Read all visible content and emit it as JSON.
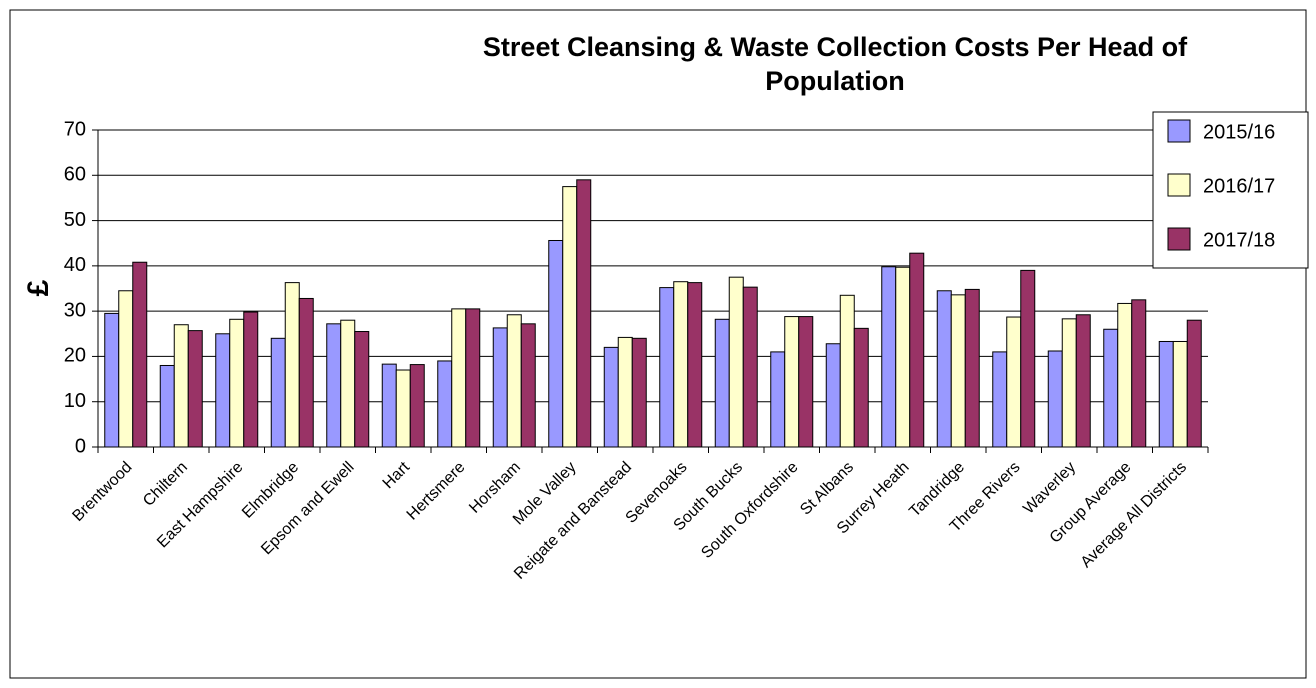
{
  "chart_data": {
    "type": "bar",
    "title": "Street Cleansing & Waste Collection Costs Per Head of Population",
    "ylabel": "£",
    "categories": [
      "Brentwood",
      "Chiltern",
      "East Hampshire",
      "Elmbridge",
      "Epsom and Ewell",
      "Hart",
      "Hertsmere",
      "Horsham",
      "Mole Valley",
      "Reigate and Banstead",
      "Sevenoaks",
      "South Bucks",
      "South Oxfordshire",
      "St Albans",
      "Surrey Heath",
      "Tandridge",
      "Three Rivers",
      "Waverley",
      "Group Average",
      "Average All Districts"
    ],
    "series": [
      {
        "name": "2015/16",
        "color": "#9999ff",
        "values": [
          29.5,
          18,
          25,
          24,
          27.2,
          18.3,
          19,
          26.3,
          45.6,
          22,
          35.2,
          28.2,
          21,
          22.8,
          39.8,
          34.5,
          21,
          21.2,
          26,
          23.3
        ]
      },
      {
        "name": "2016/17",
        "color": "#ffffcc",
        "values": [
          34.5,
          27,
          28.2,
          36.3,
          28,
          17,
          30.5,
          29.2,
          57.5,
          24.2,
          36.5,
          37.5,
          28.8,
          33.5,
          39.7,
          33.6,
          28.7,
          28.3,
          31.7,
          23.3
        ]
      },
      {
        "name": "2017/18",
        "color": "#993366",
        "values": [
          40.8,
          25.7,
          29.8,
          32.8,
          25.5,
          18.2,
          30.5,
          27.2,
          59,
          24,
          36.3,
          35.3,
          28.8,
          26.2,
          42.8,
          34.8,
          39,
          29.2,
          32.5,
          28
        ]
      }
    ],
    "ylim": [
      0,
      70
    ],
    "yticks": [
      0,
      10,
      20,
      30,
      40,
      50,
      60,
      70
    ],
    "grid": true,
    "legend": "right"
  }
}
